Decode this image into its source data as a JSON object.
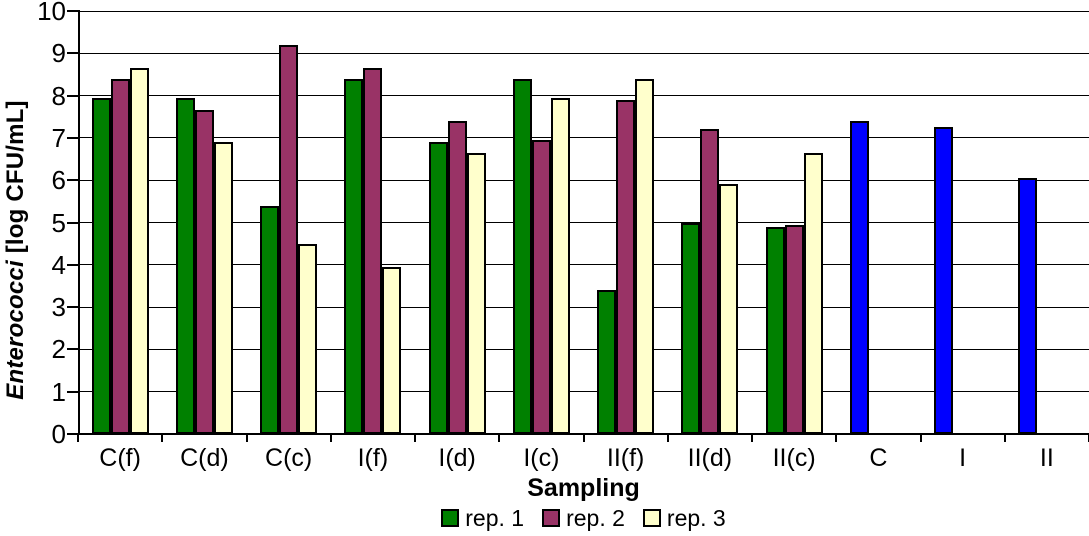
{
  "chart_data": {
    "type": "bar",
    "title": "",
    "xlabel": "Sampling",
    "ylabel": "Enterococci [log CFU/mL]",
    "ylabel_name": "Enterococci",
    "ylabel_unit": " [log CFU/mL]",
    "ylim": [
      0,
      10
    ],
    "yticks": [
      0,
      1,
      2,
      3,
      4,
      5,
      6,
      7,
      8,
      9,
      10
    ],
    "grid": "horizontal",
    "legend_position": "bottom",
    "categories": [
      "C(f)",
      "C(d)",
      "C(c)",
      "I(f)",
      "I(d)",
      "I(c)",
      "II(f)",
      "II(d)",
      "II(c)",
      "C",
      "I",
      "II"
    ],
    "series": [
      {
        "name": "rep. 1",
        "color": "#008000",
        "values": [
          7.95,
          7.95,
          5.4,
          8.4,
          6.9,
          8.4,
          3.4,
          5.0,
          4.9,
          7.4,
          7.25,
          6.05
        ],
        "point_colors": {
          "9": "#0000FF",
          "10": "#0000FF",
          "11": "#0000FF"
        }
      },
      {
        "name": "rep. 2",
        "color": "#993366",
        "values": [
          8.4,
          7.65,
          9.2,
          8.65,
          7.4,
          6.95,
          7.9,
          7.2,
          4.95,
          null,
          null,
          null
        ]
      },
      {
        "name": "rep. 3",
        "color": "#FFFFCC",
        "values": [
          8.65,
          6.9,
          4.5,
          3.95,
          6.65,
          7.95,
          8.4,
          5.9,
          6.65,
          null,
          null,
          null
        ]
      }
    ],
    "legend": [
      "rep. 1",
      "rep. 2",
      "rep. 3"
    ],
    "colors": {
      "rep1": "#008000",
      "rep2": "#993366",
      "rep3": "#FFFFCC",
      "pooled_blue": "#0000FF",
      "axis": "#000000",
      "background": "#FFFFFF"
    }
  }
}
